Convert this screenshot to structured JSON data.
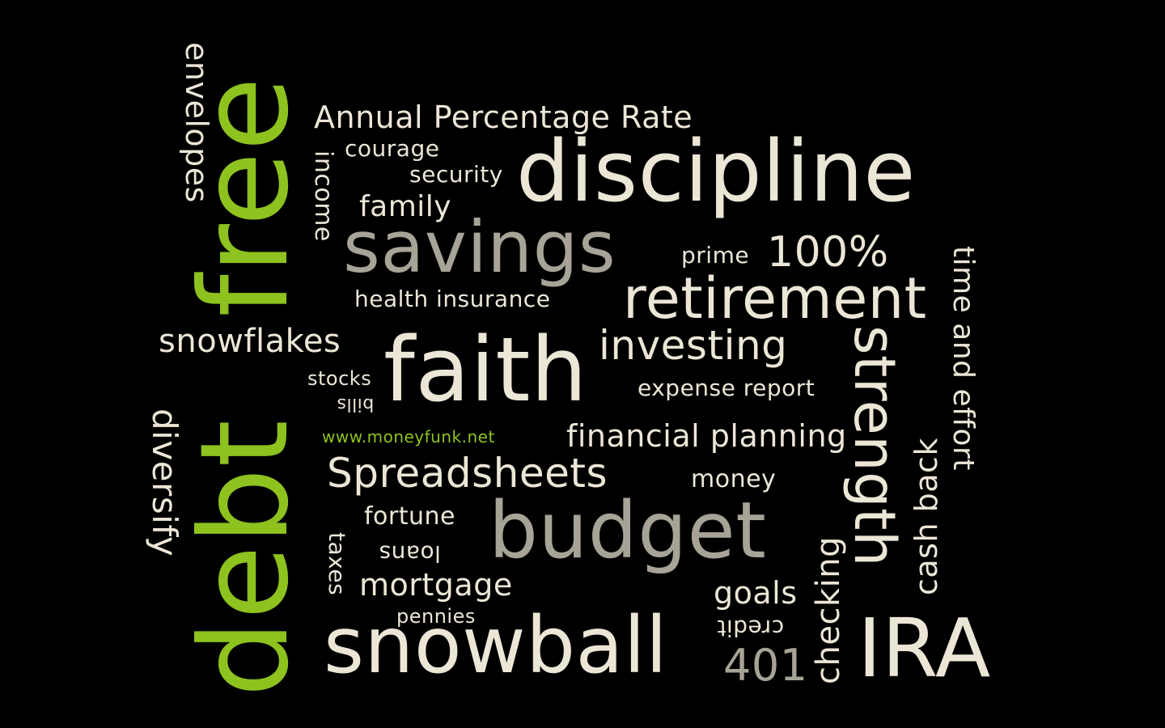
{
  "words": {
    "debtfree_debt": "debt",
    "debtfree_free": "free",
    "envelopes": "envelopes",
    "diversify": "diversify",
    "annual_rate": "Annual Percentage Rate",
    "income": "income",
    "courage": "courage",
    "security": "security",
    "family": "family",
    "discipline": "discipline",
    "savings": "savings",
    "prime": "prime",
    "hundred": "100%",
    "health_insurance": "health insurance",
    "retirement": "retirement",
    "time_effort": "time and effort",
    "snowflakes": "snowflakes",
    "investing": "investing",
    "strength": "strength",
    "stocks": "stocks",
    "faith": "faith",
    "bills": "bills",
    "expense_report": "expense report",
    "cash_back": "cash back",
    "website": "www.moneyfunk.net",
    "financial_planning": "financial planning",
    "spreadsheets": "Spreadsheets",
    "money": "money",
    "fortune": "fortune",
    "budget": "budget",
    "taxes": "taxes",
    "loans": "loans",
    "checking": "checking",
    "mortgage": "mortgage",
    "goals": "goals",
    "pennies": "pennies",
    "credit": "credit",
    "snowball": "snowball",
    "four01": "401",
    "ira": "IRA"
  },
  "colors": {
    "background": "#000000",
    "primary_text": "#ece6d6",
    "secondary_text": "#a7a396",
    "accent_green": "#8dc21f"
  }
}
